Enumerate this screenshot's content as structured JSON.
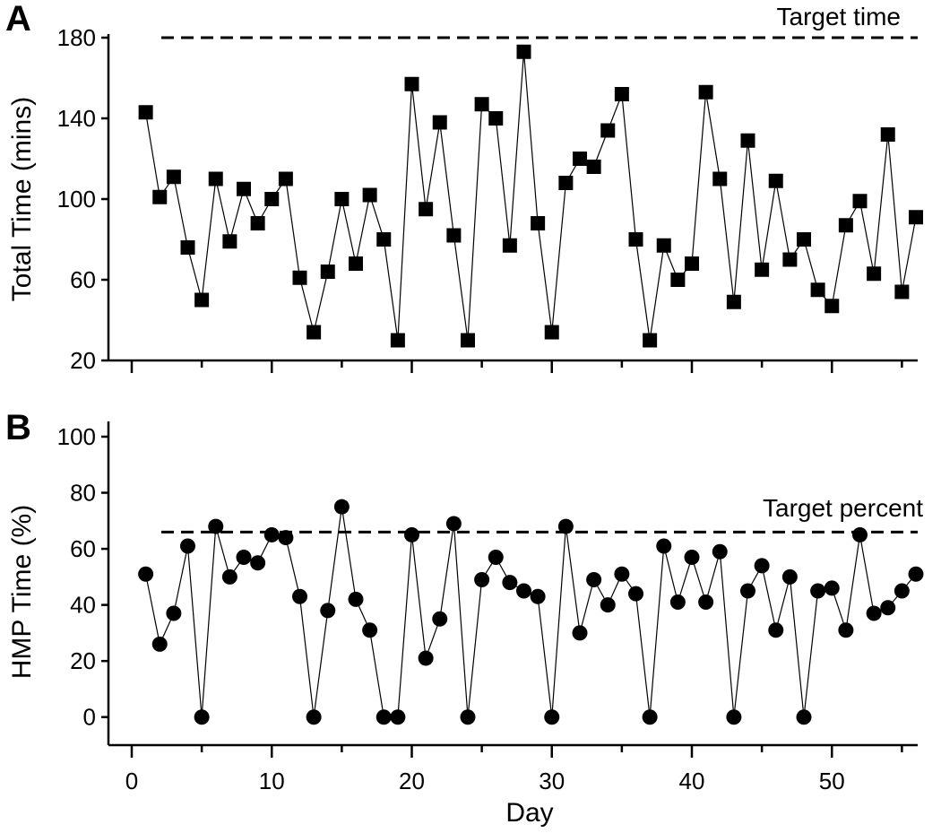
{
  "chart_data": [
    {
      "type": "line",
      "panel": "A",
      "ylabel": "Total Time (mins)",
      "xlabel": "",
      "xlim": [
        0,
        56
      ],
      "ylim": [
        20,
        180
      ],
      "xticks": [
        0,
        10,
        20,
        30,
        40,
        50
      ],
      "yticks": [
        20,
        60,
        100,
        140,
        180
      ],
      "marker": "square",
      "target": {
        "label": "Target time",
        "value": 180
      },
      "series": [
        {
          "name": "Total Time",
          "x": [
            1,
            2,
            3,
            4,
            5,
            6,
            7,
            8,
            9,
            10,
            11,
            12,
            13,
            14,
            15,
            16,
            17,
            18,
            19,
            20,
            21,
            22,
            23,
            24,
            25,
            26,
            27,
            28,
            29,
            30,
            31,
            32,
            33,
            34,
            35,
            36,
            37,
            38,
            39,
            40,
            41,
            42,
            43,
            44,
            45,
            46,
            47,
            48,
            49,
            50,
            51,
            52,
            53,
            54,
            55,
            56
          ],
          "values": [
            143,
            101,
            111,
            76,
            50,
            110,
            79,
            105,
            88,
            100,
            110,
            61,
            34,
            64,
            100,
            68,
            102,
            80,
            30,
            157,
            95,
            138,
            82,
            30,
            147,
            140,
            77,
            173,
            88,
            34,
            108,
            120,
            116,
            134,
            152,
            80,
            30,
            77,
            60,
            68,
            153,
            110,
            49,
            129,
            65,
            109,
            70,
            80,
            55,
            47,
            87,
            99,
            63,
            132,
            54,
            91
          ]
        }
      ]
    },
    {
      "type": "line",
      "panel": "B",
      "ylabel": "HMP Time (%)",
      "xlabel": "Day",
      "xlim": [
        0,
        56
      ],
      "ylim": [
        -10,
        100
      ],
      "xticks": [
        0,
        10,
        20,
        30,
        40,
        50
      ],
      "yticks": [
        0,
        20,
        40,
        60,
        80,
        100
      ],
      "marker": "circle",
      "target": {
        "label": "Target percent",
        "value": 66
      },
      "series": [
        {
          "name": "HMP Time",
          "x": [
            1,
            2,
            3,
            4,
            5,
            6,
            7,
            8,
            9,
            10,
            11,
            12,
            13,
            14,
            15,
            16,
            17,
            18,
            19,
            20,
            21,
            22,
            23,
            24,
            25,
            26,
            27,
            28,
            29,
            30,
            31,
            32,
            33,
            34,
            35,
            36,
            37,
            38,
            39,
            40,
            41,
            42,
            43,
            44,
            45,
            46,
            47,
            48,
            49,
            50,
            51,
            52,
            53,
            54,
            55,
            56
          ],
          "values": [
            51,
            26,
            37,
            61,
            0,
            68,
            50,
            57,
            55,
            65,
            64,
            43,
            0,
            38,
            75,
            42,
            31,
            0,
            0,
            65,
            21,
            35,
            69,
            0,
            49,
            57,
            48,
            45,
            43,
            0,
            68,
            30,
            49,
            40,
            51,
            44,
            0,
            61,
            41,
            57,
            41,
            59,
            0,
            45,
            54,
            31,
            50,
            0,
            45,
            46,
            31,
            65,
            37,
            39,
            45,
            51
          ]
        }
      ]
    }
  ]
}
